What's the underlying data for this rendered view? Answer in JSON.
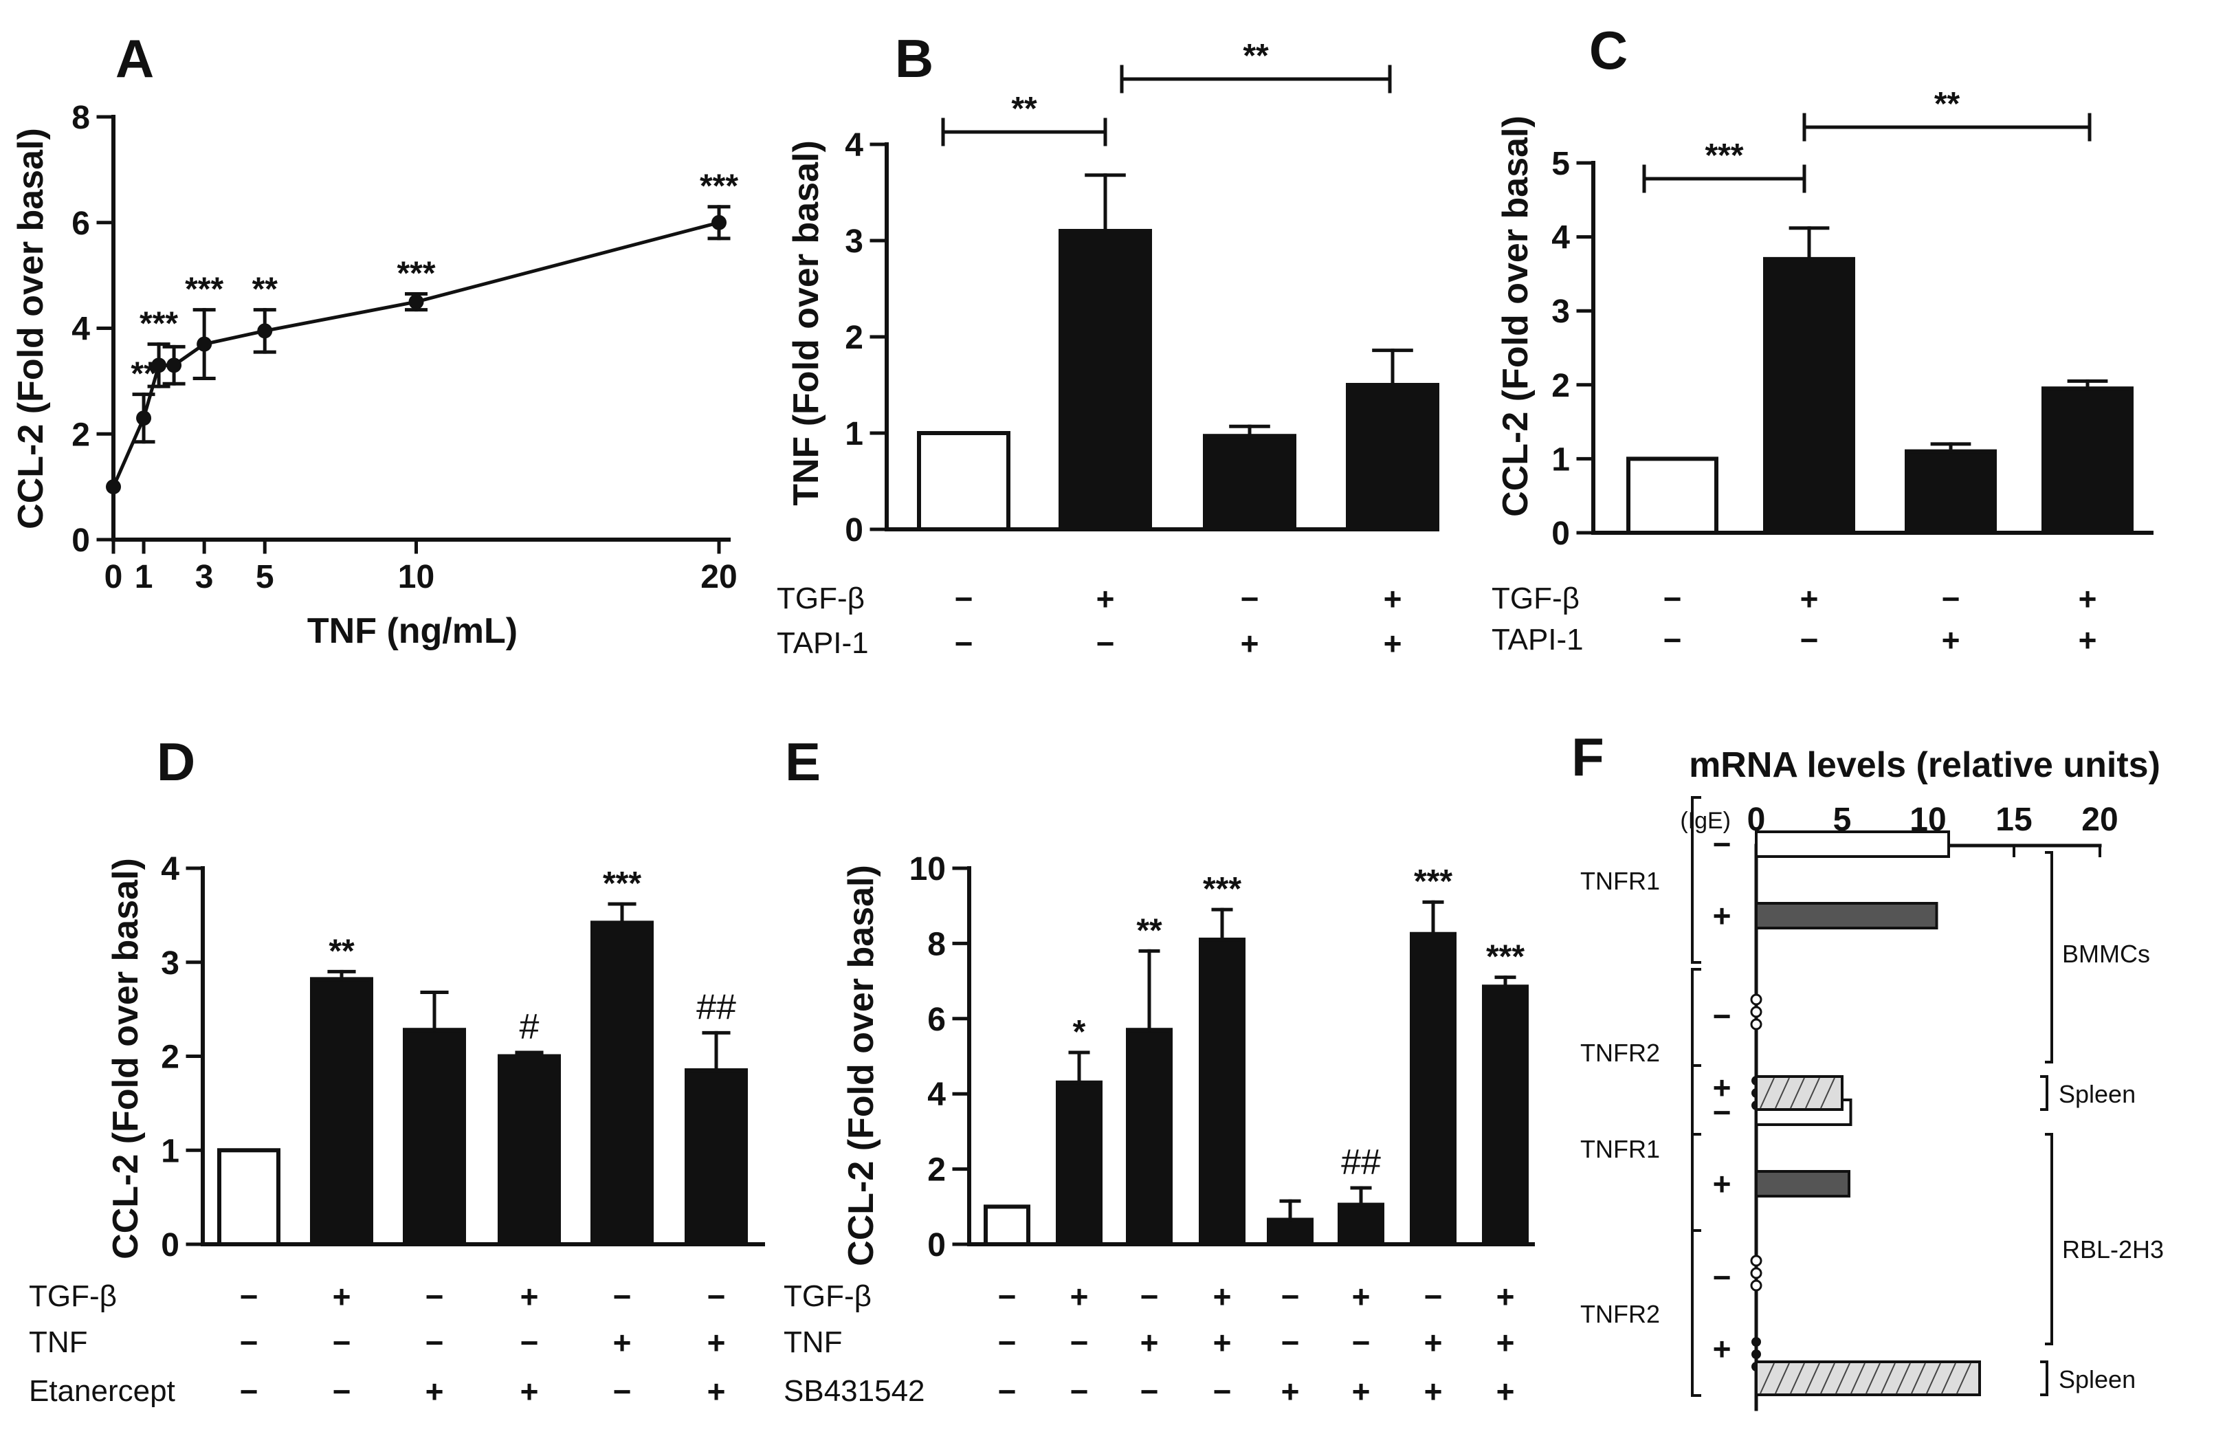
{
  "chart_data": [
    {
      "panel": "A",
      "type": "line",
      "xlabel": "TNF (ng/mL)",
      "ylabel": "CCL-2  (Fold  over basal)",
      "ylim": [
        0,
        8
      ],
      "yticks": [
        0,
        2,
        4,
        6,
        8
      ],
      "xticks": [
        0,
        1,
        3,
        5,
        10,
        20
      ],
      "x": [
        0,
        1,
        1.5,
        2,
        3,
        5,
        10,
        20
      ],
      "y": [
        1.0,
        2.3,
        3.3,
        3.3,
        3.7,
        3.95,
        4.5,
        6.0
      ],
      "err": [
        0,
        0.45,
        0.4,
        0.35,
        0.65,
        0.4,
        0.15,
        0.3
      ],
      "sig": [
        "",
        "**",
        "***",
        "",
        "***",
        "**",
        "***",
        "***"
      ]
    },
    {
      "panel": "B",
      "type": "bar",
      "ylabel": "TNF (Fold over basal)",
      "ylim": [
        0,
        4
      ],
      "yticks": [
        0,
        1,
        2,
        3,
        4
      ],
      "values": [
        1.0,
        3.1,
        0.97,
        1.5
      ],
      "err": [
        0,
        0.58,
        0.1,
        0.36
      ],
      "filled": [
        false,
        true,
        true,
        true
      ],
      "bracket_labels": [
        "**",
        "**"
      ],
      "conditions": [
        {
          "name": "TGF-β",
          "signs": [
            "−",
            "+",
            "−",
            "+"
          ]
        },
        {
          "name": "TAPI-1",
          "signs": [
            "−",
            "−",
            "+",
            "+"
          ]
        }
      ]
    },
    {
      "panel": "C",
      "type": "bar",
      "ylabel": "CCL-2  (Fold over basal)",
      "ylim": [
        0,
        5
      ],
      "yticks": [
        0,
        1,
        2,
        3,
        4,
        5
      ],
      "values": [
        1.0,
        3.7,
        1.1,
        1.95
      ],
      "err": [
        0,
        0.42,
        0.1,
        0.1
      ],
      "filled": [
        false,
        true,
        true,
        true
      ],
      "bracket_labels": [
        "***",
        "**"
      ],
      "conditions": [
        {
          "name": "TGF-β",
          "signs": [
            "−",
            "+",
            "−",
            "+"
          ]
        },
        {
          "name": "TAPI-1",
          "signs": [
            "−",
            "−",
            "+",
            "+"
          ]
        }
      ]
    },
    {
      "panel": "D",
      "type": "bar",
      "ylabel": "CCL-2  (Fold over basal)",
      "ylim": [
        0,
        4
      ],
      "yticks": [
        0,
        1,
        2,
        3,
        4
      ],
      "values": [
        1.0,
        2.82,
        2.28,
        2.0,
        3.42,
        1.85
      ],
      "err": [
        0,
        0.08,
        0.4,
        0.04,
        0.2,
        0.4
      ],
      "filled": [
        false,
        true,
        true,
        true,
        true,
        true
      ],
      "sig": [
        "",
        "**",
        "",
        "#",
        "***",
        "##"
      ],
      "conditions": [
        {
          "name": "TGF-β",
          "signs": [
            "−",
            "+",
            "−",
            "+",
            "−",
            "−"
          ]
        },
        {
          "name": "TNF",
          "signs": [
            "−",
            "−",
            "−",
            "−",
            "+",
            "+"
          ]
        },
        {
          "name": "Etanercept",
          "signs": [
            "−",
            "−",
            "+",
            "+",
            "−",
            "+"
          ]
        }
      ]
    },
    {
      "panel": "E",
      "type": "bar",
      "ylabel": "CCL-2  (Fold over basal)",
      "ylim": [
        0,
        10
      ],
      "yticks": [
        0,
        2,
        4,
        6,
        8,
        10
      ],
      "values": [
        1.0,
        4.3,
        5.7,
        8.1,
        0.65,
        1.05,
        8.25,
        6.85
      ],
      "err": [
        0,
        0.8,
        2.1,
        0.8,
        0.5,
        0.45,
        0.85,
        0.25
      ],
      "filled": [
        false,
        true,
        true,
        true,
        true,
        true,
        true,
        true
      ],
      "sig": [
        "",
        "*",
        "**",
        "***",
        "",
        "##",
        "***",
        "***"
      ],
      "conditions": [
        {
          "name": "TGF-β",
          "signs": [
            "−",
            "+",
            "−",
            "+",
            "−",
            "+",
            "−",
            "+"
          ]
        },
        {
          "name": "TNF",
          "signs": [
            "−",
            "−",
            "+",
            "+",
            "−",
            "−",
            "+",
            "+"
          ]
        },
        {
          "name": "SB431542",
          "signs": [
            "−",
            "−",
            "−",
            "−",
            "+",
            "+",
            "+",
            "+"
          ]
        }
      ]
    },
    {
      "panel": "F",
      "type": "bar",
      "orientation": "horizontal",
      "title": "mRNA levels (relative units)",
      "ige_label": "(IgE)",
      "xlim": [
        0,
        20
      ],
      "xticks": [
        0,
        5,
        10,
        15,
        20
      ],
      "groups": [
        {
          "receptor": "TNFR1",
          "cells": "BMMCs",
          "minus": 11.2,
          "plus": 10.5
        },
        {
          "receptor": "TNFR2",
          "cells": "BMMCs",
          "minus": 0.0,
          "plus": 0.0
        },
        {
          "receptor": "TNFR1",
          "cells": "RBL-2H3",
          "minus": 5.5,
          "plus": 5.4
        },
        {
          "receptor": "TNFR2",
          "cells": "RBL-2H3",
          "minus": 0.0,
          "plus": 0.0
        }
      ],
      "spleen": [
        {
          "label": "Spleen",
          "value": 5.0
        },
        {
          "label": "Spleen",
          "value": 13.0
        }
      ],
      "signs": [
        "−",
        "+"
      ]
    }
  ]
}
